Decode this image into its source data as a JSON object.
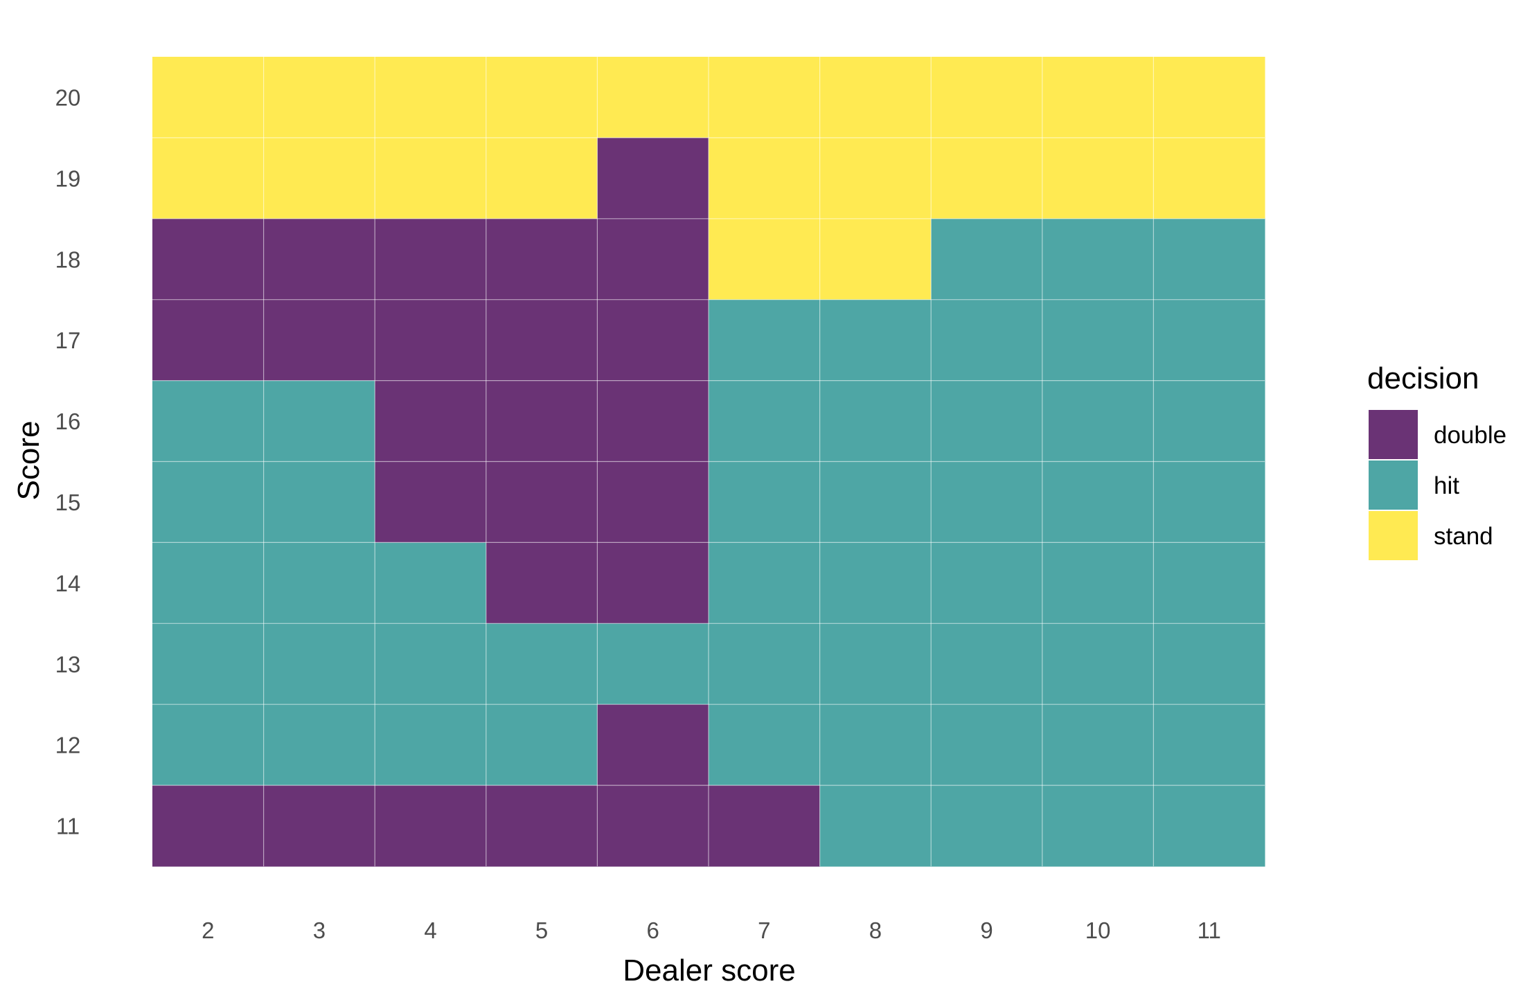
{
  "chart_data": {
    "type": "heatmap",
    "xlabel": "Dealer score",
    "ylabel": "Score",
    "x": [
      2,
      3,
      4,
      5,
      6,
      7,
      8,
      9,
      10,
      11
    ],
    "y": [
      11,
      12,
      13,
      14,
      15,
      16,
      17,
      18,
      19,
      20
    ],
    "x_tick_labels": [
      "2",
      "3",
      "4",
      "5",
      "6",
      "7",
      "8",
      "9",
      "10",
      "11"
    ],
    "y_tick_labels": [
      "11",
      "12",
      "13",
      "14",
      "15",
      "16",
      "17",
      "18",
      "19",
      "20"
    ],
    "grid": true,
    "legend": {
      "title": "decision",
      "position": "right",
      "entries": [
        {
          "label": "double",
          "color": "#6a3375"
        },
        {
          "label": "hit",
          "color": "#4ea6a5"
        },
        {
          "label": "stand",
          "color": "#ffea52"
        }
      ]
    },
    "rows": [
      {
        "score": 20,
        "decisions": [
          "stand",
          "stand",
          "stand",
          "stand",
          "stand",
          "stand",
          "stand",
          "stand",
          "stand",
          "stand"
        ]
      },
      {
        "score": 19,
        "decisions": [
          "stand",
          "stand",
          "stand",
          "stand",
          "double",
          "stand",
          "stand",
          "stand",
          "stand",
          "stand"
        ]
      },
      {
        "score": 18,
        "decisions": [
          "double",
          "double",
          "double",
          "double",
          "double",
          "stand",
          "stand",
          "hit",
          "hit",
          "hit"
        ]
      },
      {
        "score": 17,
        "decisions": [
          "double",
          "double",
          "double",
          "double",
          "double",
          "hit",
          "hit",
          "hit",
          "hit",
          "hit"
        ]
      },
      {
        "score": 16,
        "decisions": [
          "hit",
          "hit",
          "double",
          "double",
          "double",
          "hit",
          "hit",
          "hit",
          "hit",
          "hit"
        ]
      },
      {
        "score": 15,
        "decisions": [
          "hit",
          "hit",
          "double",
          "double",
          "double",
          "hit",
          "hit",
          "hit",
          "hit",
          "hit"
        ]
      },
      {
        "score": 14,
        "decisions": [
          "hit",
          "hit",
          "hit",
          "double",
          "double",
          "hit",
          "hit",
          "hit",
          "hit",
          "hit"
        ]
      },
      {
        "score": 13,
        "decisions": [
          "hit",
          "hit",
          "hit",
          "hit",
          "hit",
          "hit",
          "hit",
          "hit",
          "hit",
          "hit"
        ]
      },
      {
        "score": 12,
        "decisions": [
          "hit",
          "hit",
          "hit",
          "hit",
          "double",
          "hit",
          "hit",
          "hit",
          "hit",
          "hit"
        ]
      },
      {
        "score": 11,
        "decisions": [
          "double",
          "double",
          "double",
          "double",
          "double",
          "double",
          "hit",
          "hit",
          "hit",
          "hit"
        ]
      }
    ]
  }
}
